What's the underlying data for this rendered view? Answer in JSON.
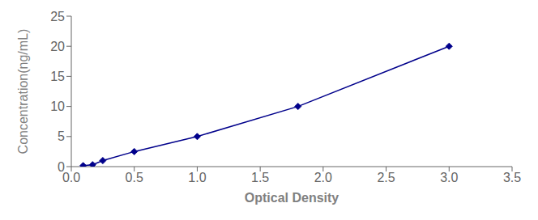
{
  "chart_data": {
    "type": "line",
    "xlabel": "Optical Density",
    "ylabel": "Concentration(ng/mL)",
    "x": [
      0.094,
      0.169,
      0.25,
      0.5,
      1.0,
      1.8,
      3.0
    ],
    "values": [
      0.156,
      0.313,
      1.0,
      2.5,
      5.0,
      10.0,
      20.0
    ],
    "color": "#00008B",
    "marker": "diamond",
    "xlim": [
      0,
      3.5
    ],
    "ylim": [
      0,
      25
    ],
    "xticks": [
      {
        "value": 0.0,
        "label": "0.0"
      },
      0.5,
      {
        "value": 1.0,
        "label": "1.0"
      },
      1.5,
      {
        "value": 2.0,
        "label": "2.0"
      },
      2.5,
      {
        "value": 3.0,
        "label": "3.0"
      },
      3.5
    ],
    "yticks": [
      0,
      5,
      10,
      15,
      20,
      25
    ],
    "grid": false
  }
}
